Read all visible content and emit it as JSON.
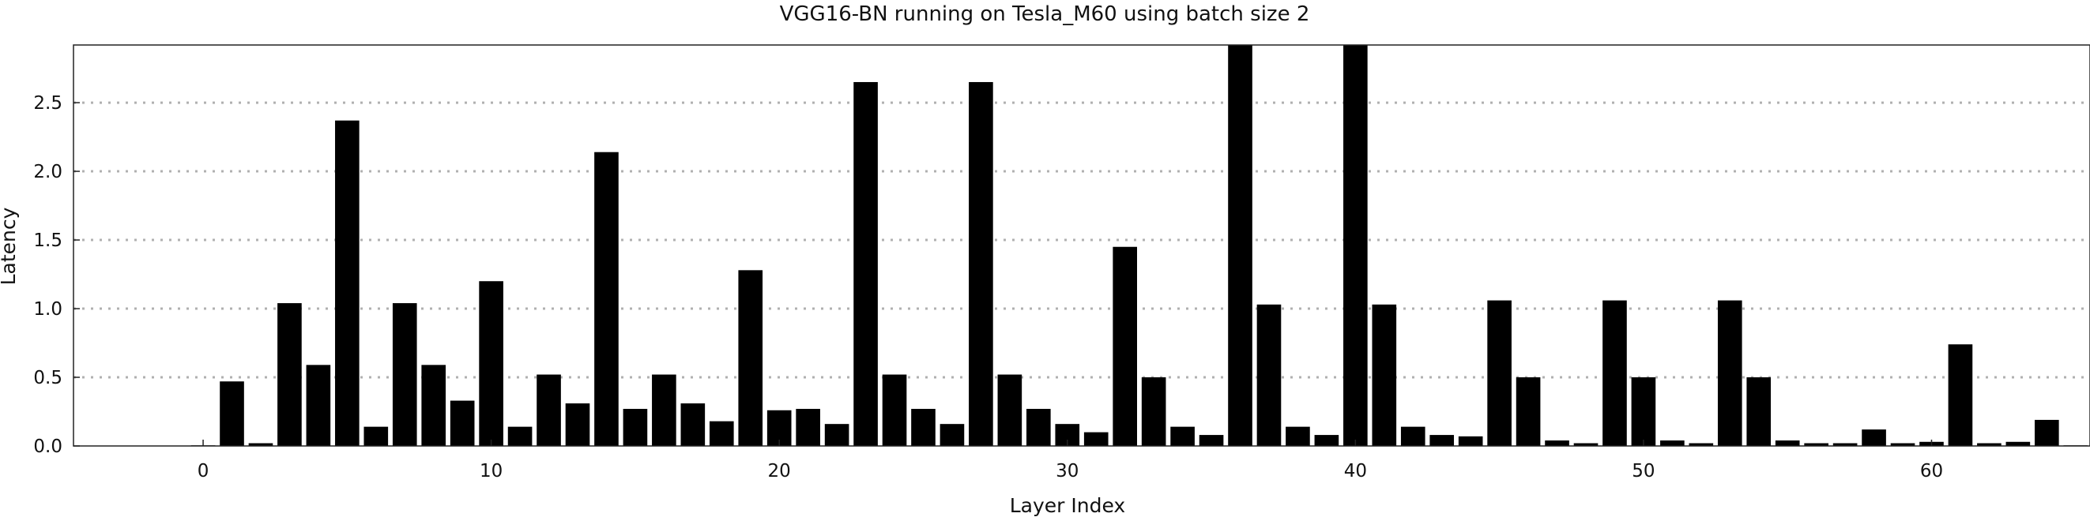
{
  "chart_data": {
    "type": "bar",
    "title": "VGG16-BN running on Tesla_M60 using batch size 2",
    "xlabel": "Layer Index",
    "ylabel": "Latency",
    "xlim": [
      -4.5,
      65.5
    ],
    "ylim": [
      0,
      2.92
    ],
    "xticks": [
      0,
      10,
      20,
      30,
      40,
      50,
      60
    ],
    "yticks": [
      0.0,
      0.5,
      1.0,
      1.5,
      2.0,
      2.5
    ],
    "xtick_labels": [
      "0",
      "10",
      "20",
      "30",
      "40",
      "50",
      "60"
    ],
    "ytick_labels": [
      "0.0",
      "0.5",
      "1.0",
      "1.5",
      "2.0",
      "2.5"
    ],
    "grid": "horizontal dotted",
    "bar_color": "#000000",
    "x": [
      0,
      1,
      2,
      3,
      4,
      5,
      6,
      7,
      8,
      9,
      10,
      11,
      12,
      13,
      14,
      15,
      16,
      17,
      18,
      19,
      20,
      21,
      22,
      23,
      24,
      25,
      26,
      27,
      28,
      29,
      30,
      31,
      32,
      33,
      34,
      35,
      36,
      37,
      38,
      39,
      40,
      41,
      42,
      43,
      44,
      45,
      46,
      47,
      48,
      49,
      50,
      51,
      52,
      53,
      54,
      55,
      56,
      57,
      58,
      59,
      60,
      61,
      62,
      63,
      64,
      65
    ],
    "values": [
      0.0,
      0.47,
      0.02,
      1.04,
      0.59,
      2.37,
      0.14,
      1.04,
      0.59,
      0.33,
      1.2,
      0.14,
      0.52,
      0.31,
      2.14,
      0.27,
      0.52,
      0.31,
      0.18,
      1.28,
      0.26,
      0.27,
      0.16,
      2.65,
      0.52,
      0.27,
      0.16,
      2.65,
      0.52,
      0.27,
      0.16,
      0.1,
      1.45,
      0.5,
      0.14,
      0.08,
      2.92,
      1.03,
      0.14,
      0.08,
      2.92,
      1.03,
      0.14,
      0.08,
      0.07,
      1.06,
      0.5,
      0.04,
      0.02,
      1.06,
      0.5,
      0.04,
      0.02,
      1.06,
      0.5,
      0.04,
      0.02,
      0.02,
      0.12,
      0.02,
      0.03,
      0.74,
      0.02,
      0.03,
      0.19,
      0.0
    ]
  }
}
